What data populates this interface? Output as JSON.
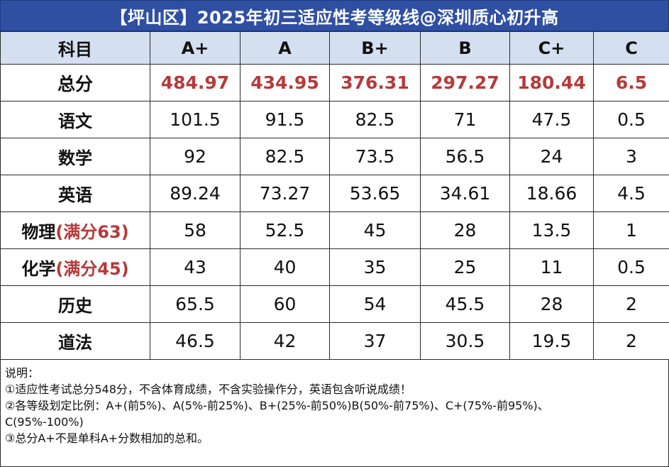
{
  "title": "【坪山区】2025年初三适应性考等级线@深圳质心初升高",
  "header": [
    "科目",
    "A+",
    "A",
    "B+",
    "B",
    "C+",
    "C"
  ],
  "rows": [
    {
      "subject": "总分",
      "note": "",
      "values": [
        "484.97",
        "434.95",
        "376.31",
        "297.27",
        "180.44",
        "6.5"
      ]
    },
    {
      "subject": "语文",
      "note": "",
      "values": [
        "101.5",
        "91.5",
        "82.5",
        "71",
        "47.5",
        "0.5"
      ]
    },
    {
      "subject": "数学",
      "note": "",
      "values": [
        "92",
        "82.5",
        "73.5",
        "56.5",
        "24",
        "3"
      ]
    },
    {
      "subject": "英语",
      "note": "",
      "values": [
        "89.24",
        "73.27",
        "53.65",
        "34.61",
        "18.66",
        "4.5"
      ]
    },
    {
      "subject": "物理",
      "note": "(满分63)",
      "values": [
        "58",
        "52.5",
        "45",
        "28",
        "13.5",
        "1"
      ]
    },
    {
      "subject": "化学",
      "note": "(满分45)",
      "values": [
        "43",
        "40",
        "35",
        "25",
        "11",
        "0.5"
      ]
    },
    {
      "subject": "历史",
      "note": "",
      "values": [
        "65.5",
        "60",
        "54",
        "45.5",
        "28",
        "2"
      ]
    },
    {
      "subject": "道法",
      "note": "",
      "values": [
        "46.5",
        "42",
        "37",
        "30.5",
        "19.5",
        "2"
      ]
    }
  ],
  "notes": {
    "heading": "说明：",
    "lines": [
      "①适应性考试总分548分，不含体育成绩，不含实验操作分，英语包含听说成绩！",
      "②各等级划定比例：A+(前5%)、A(5%-前25%)、B+(25%-前50%)B(50%-前75%)、C+(75%-前95%)、",
      "C(95%-100%)",
      "③总分A+不是单科A+分数相加的总和。"
    ]
  },
  "colors": {
    "title_bg": "#2f4fa3",
    "header_bg": "#d4dff0",
    "highlight_red": "#b53a3a"
  }
}
